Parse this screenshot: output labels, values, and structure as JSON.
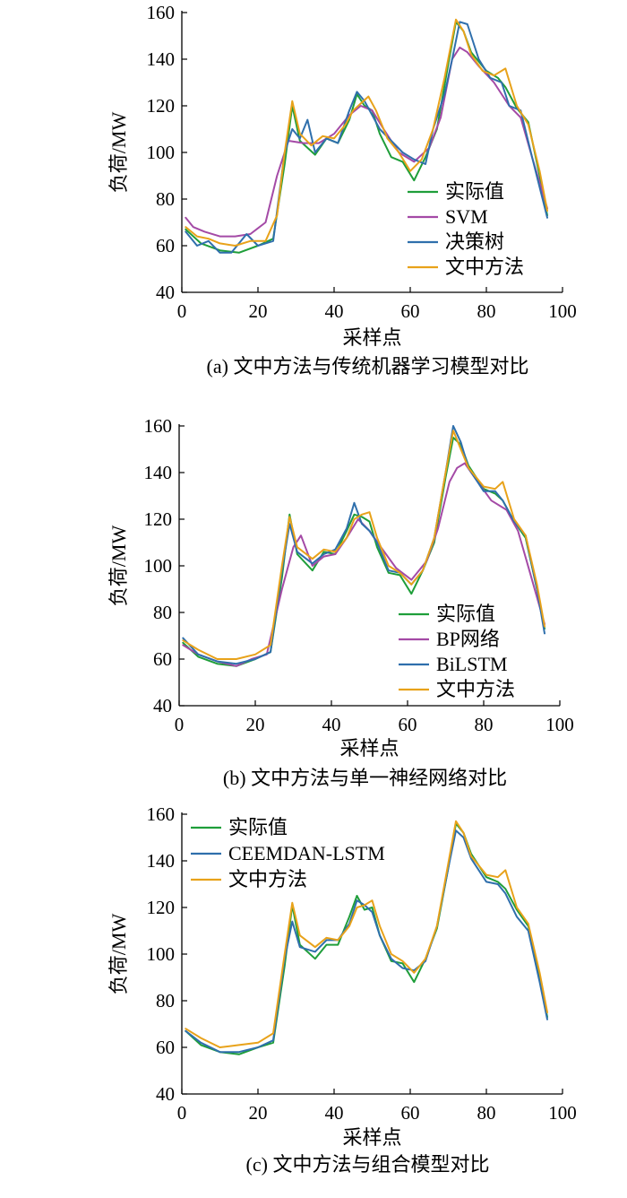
{
  "chart_data": [
    {
      "type": "line",
      "caption": "(a)  文中方法与传统机器学习模型对比",
      "xlabel": "采样点",
      "ylabel": "负荷/MW",
      "xlim": [
        0,
        100
      ],
      "ylim": [
        40,
        160
      ],
      "xticks": [
        0,
        20,
        40,
        60,
        80,
        100
      ],
      "yticks": [
        40,
        60,
        80,
        100,
        120,
        140,
        160
      ],
      "legend_position": "lower-right",
      "series": [
        {
          "name": "实际值",
          "color": "#1f9e3a",
          "x": [
            1,
            5,
            10,
            15,
            20,
            24,
            27,
            29,
            31,
            35,
            38,
            41,
            44,
            46,
            48,
            50,
            52,
            55,
            58,
            61,
            64,
            67,
            70,
            72,
            74,
            76,
            80,
            83,
            85,
            88,
            91,
            94,
            96
          ],
          "y": [
            67,
            61,
            58,
            57,
            60,
            63,
            95,
            120,
            105,
            99,
            106,
            104,
            114,
            125,
            120,
            118,
            108,
            98,
            96,
            88,
            98,
            110,
            138,
            156,
            152,
            143,
            135,
            132,
            128,
            119,
            113,
            90,
            73
          ]
        },
        {
          "name": "SVM",
          "color": "#a44aa6",
          "x": [
            1,
            3,
            6,
            10,
            14,
            18,
            22,
            25,
            28,
            32,
            36,
            40,
            44,
            47,
            50,
            53,
            57,
            61,
            65,
            68,
            71,
            73,
            75,
            78,
            82,
            86,
            89,
            92,
            96
          ],
          "y": [
            72,
            68,
            66,
            64,
            64,
            65,
            70,
            90,
            105,
            104,
            104,
            108,
            116,
            120,
            118,
            110,
            100,
            96,
            102,
            115,
            140,
            145,
            143,
            137,
            130,
            120,
            115,
            98,
            76
          ]
        },
        {
          "name": "决策树",
          "color": "#2f6fac",
          "x": [
            1,
            4,
            7,
            10,
            13,
            17,
            20,
            24,
            27,
            29,
            31,
            33,
            35,
            38,
            41,
            44,
            46,
            48,
            50,
            52,
            55,
            58,
            61,
            64,
            66,
            69,
            71,
            73,
            75,
            78,
            81,
            84,
            86,
            89,
            92,
            96
          ],
          "y": [
            66,
            60,
            62,
            57,
            57,
            65,
            60,
            62,
            100,
            110,
            106,
            114,
            100,
            106,
            104,
            118,
            126,
            122,
            116,
            110,
            105,
            100,
            97,
            95,
            110,
            125,
            140,
            156,
            155,
            140,
            132,
            130,
            120,
            118,
            98,
            72
          ]
        },
        {
          "name": "文中方法",
          "color": "#e8a21a",
          "x": [
            1,
            4,
            7,
            10,
            14,
            18,
            22,
            25,
            27,
            29,
            31,
            34,
            37,
            40,
            43,
            45,
            47,
            49,
            51,
            54,
            57,
            60,
            63,
            66,
            69,
            72,
            74,
            76,
            79,
            82,
            85,
            88,
            91,
            94,
            96
          ],
          "y": [
            68,
            64,
            63,
            61,
            60,
            62,
            62,
            73,
            100,
            122,
            108,
            103,
            107,
            106,
            112,
            118,
            121,
            124,
            118,
            106,
            100,
            92,
            97,
            110,
            132,
            157,
            152,
            142,
            135,
            133,
            136,
            120,
            112,
            92,
            75
          ]
        }
      ]
    },
    {
      "type": "line",
      "caption": "(b)  文中方法与单一神经网络对比",
      "xlabel": "采样点",
      "ylabel": "负荷/MW",
      "xlim": [
        0,
        100
      ],
      "ylim": [
        40,
        160
      ],
      "xticks": [
        0,
        20,
        40,
        60,
        80,
        100
      ],
      "yticks": [
        40,
        60,
        80,
        100,
        120,
        140,
        160
      ],
      "legend_position": "lower-right",
      "series": [
        {
          "name": "实际值",
          "color": "#1f9e3a",
          "x": [
            1,
            5,
            10,
            15,
            20,
            24,
            27,
            29,
            31,
            35,
            38,
            41,
            44,
            46,
            48,
            50,
            52,
            55,
            58,
            61,
            64,
            67,
            70,
            72,
            74,
            76,
            80,
            83,
            85,
            88,
            91,
            94,
            96
          ],
          "y": [
            67,
            61,
            58,
            57,
            60,
            63,
            95,
            122,
            105,
            98,
            106,
            105,
            115,
            122,
            121,
            119,
            108,
            97,
            96,
            88,
            98,
            110,
            138,
            155,
            152,
            143,
            133,
            131,
            128,
            119,
            112,
            90,
            73
          ]
        },
        {
          "name": "BP网络",
          "color": "#a44aa6",
          "x": [
            1,
            5,
            10,
            15,
            19,
            23,
            27,
            30,
            32,
            35,
            38,
            41,
            44,
            47,
            50,
            53,
            57,
            61,
            65,
            68,
            71,
            73,
            75,
            78,
            82,
            86,
            89,
            92,
            96
          ],
          "y": [
            66,
            62,
            59,
            57,
            60,
            62,
            90,
            108,
            113,
            100,
            104,
            105,
            112,
            120,
            115,
            108,
            99,
            94,
            102,
            116,
            136,
            142,
            144,
            137,
            128,
            124,
            115,
            98,
            75
          ]
        },
        {
          "name": "BiLSTM",
          "color": "#2f6fac",
          "x": [
            1,
            5,
            10,
            15,
            20,
            24,
            27,
            29,
            31,
            35,
            38,
            41,
            44,
            46,
            48,
            50,
            52,
            55,
            58,
            61,
            64,
            67,
            70,
            72,
            74,
            76,
            80,
            83,
            85,
            88,
            91,
            94,
            96
          ],
          "y": [
            69,
            62,
            59,
            58,
            60,
            63,
            98,
            118,
            106,
            101,
            105,
            107,
            116,
            127,
            118,
            115,
            110,
            98,
            97,
            92,
            98,
            112,
            140,
            160,
            153,
            142,
            132,
            132,
            128,
            119,
            113,
            90,
            71
          ]
        },
        {
          "name": "文中方法",
          "color": "#e8a21a",
          "x": [
            1,
            5,
            10,
            15,
            20,
            24,
            27,
            29,
            31,
            35,
            38,
            41,
            44,
            46,
            48,
            50,
            52,
            55,
            58,
            61,
            64,
            67,
            70,
            72,
            74,
            76,
            80,
            83,
            85,
            88,
            91,
            94,
            96
          ],
          "y": [
            68,
            64,
            60,
            60,
            62,
            66,
            100,
            121,
            108,
            103,
            107,
            106,
            112,
            120,
            122,
            123,
            112,
            100,
            97,
            92,
            98,
            112,
            140,
            158,
            150,
            142,
            134,
            133,
            136,
            120,
            113,
            92,
            74
          ]
        }
      ]
    },
    {
      "type": "line",
      "caption": "(c)  文中方法与组合模型对比",
      "xlabel": "采样点",
      "ylabel": "负荷/MW",
      "xlim": [
        0,
        100
      ],
      "ylim": [
        40,
        160
      ],
      "xticks": [
        0,
        20,
        40,
        60,
        80,
        100
      ],
      "yticks": [
        40,
        60,
        80,
        100,
        120,
        140,
        160
      ],
      "legend_position": "top-left",
      "series": [
        {
          "name": "实际值",
          "color": "#1f9e3a",
          "x": [
            1,
            5,
            10,
            15,
            20,
            24,
            27,
            29,
            31,
            35,
            38,
            41,
            44,
            46,
            48,
            50,
            52,
            55,
            58,
            61,
            64,
            67,
            70,
            72,
            74,
            76,
            80,
            83,
            85,
            88,
            91,
            94,
            96
          ],
          "y": [
            67,
            61,
            58,
            57,
            60,
            62,
            95,
            121,
            104,
            98,
            104,
            104,
            116,
            125,
            119,
            120,
            108,
            97,
            96,
            88,
            98,
            111,
            137,
            156,
            152,
            143,
            133,
            131,
            128,
            119,
            112,
            90,
            73
          ]
        },
        {
          "name": "CEEMDAN-LSTM",
          "color": "#2f6fac",
          "x": [
            1,
            5,
            10,
            15,
            20,
            24,
            27,
            29,
            31,
            35,
            38,
            41,
            44,
            46,
            48,
            50,
            52,
            55,
            58,
            61,
            64,
            67,
            70,
            72,
            74,
            76,
            80,
            83,
            85,
            88,
            91,
            94,
            96
          ],
          "y": [
            67,
            62,
            58,
            58,
            60,
            63,
            98,
            114,
            103,
            101,
            106,
            106,
            113,
            123,
            121,
            118,
            108,
            98,
            94,
            93,
            97,
            112,
            137,
            153,
            150,
            141,
            131,
            130,
            126,
            116,
            110,
            88,
            72
          ]
        },
        {
          "name": "文中方法",
          "color": "#e8a21a",
          "x": [
            1,
            5,
            10,
            15,
            20,
            24,
            27,
            29,
            31,
            35,
            38,
            41,
            44,
            46,
            48,
            50,
            52,
            55,
            58,
            61,
            64,
            67,
            70,
            72,
            74,
            76,
            80,
            83,
            85,
            88,
            91,
            94,
            96
          ],
          "y": [
            68,
            64,
            60,
            61,
            62,
            66,
            100,
            122,
            108,
            103,
            107,
            106,
            112,
            120,
            121,
            123,
            112,
            100,
            97,
            92,
            98,
            112,
            139,
            157,
            152,
            142,
            134,
            133,
            136,
            120,
            113,
            92,
            75
          ]
        }
      ]
    }
  ]
}
